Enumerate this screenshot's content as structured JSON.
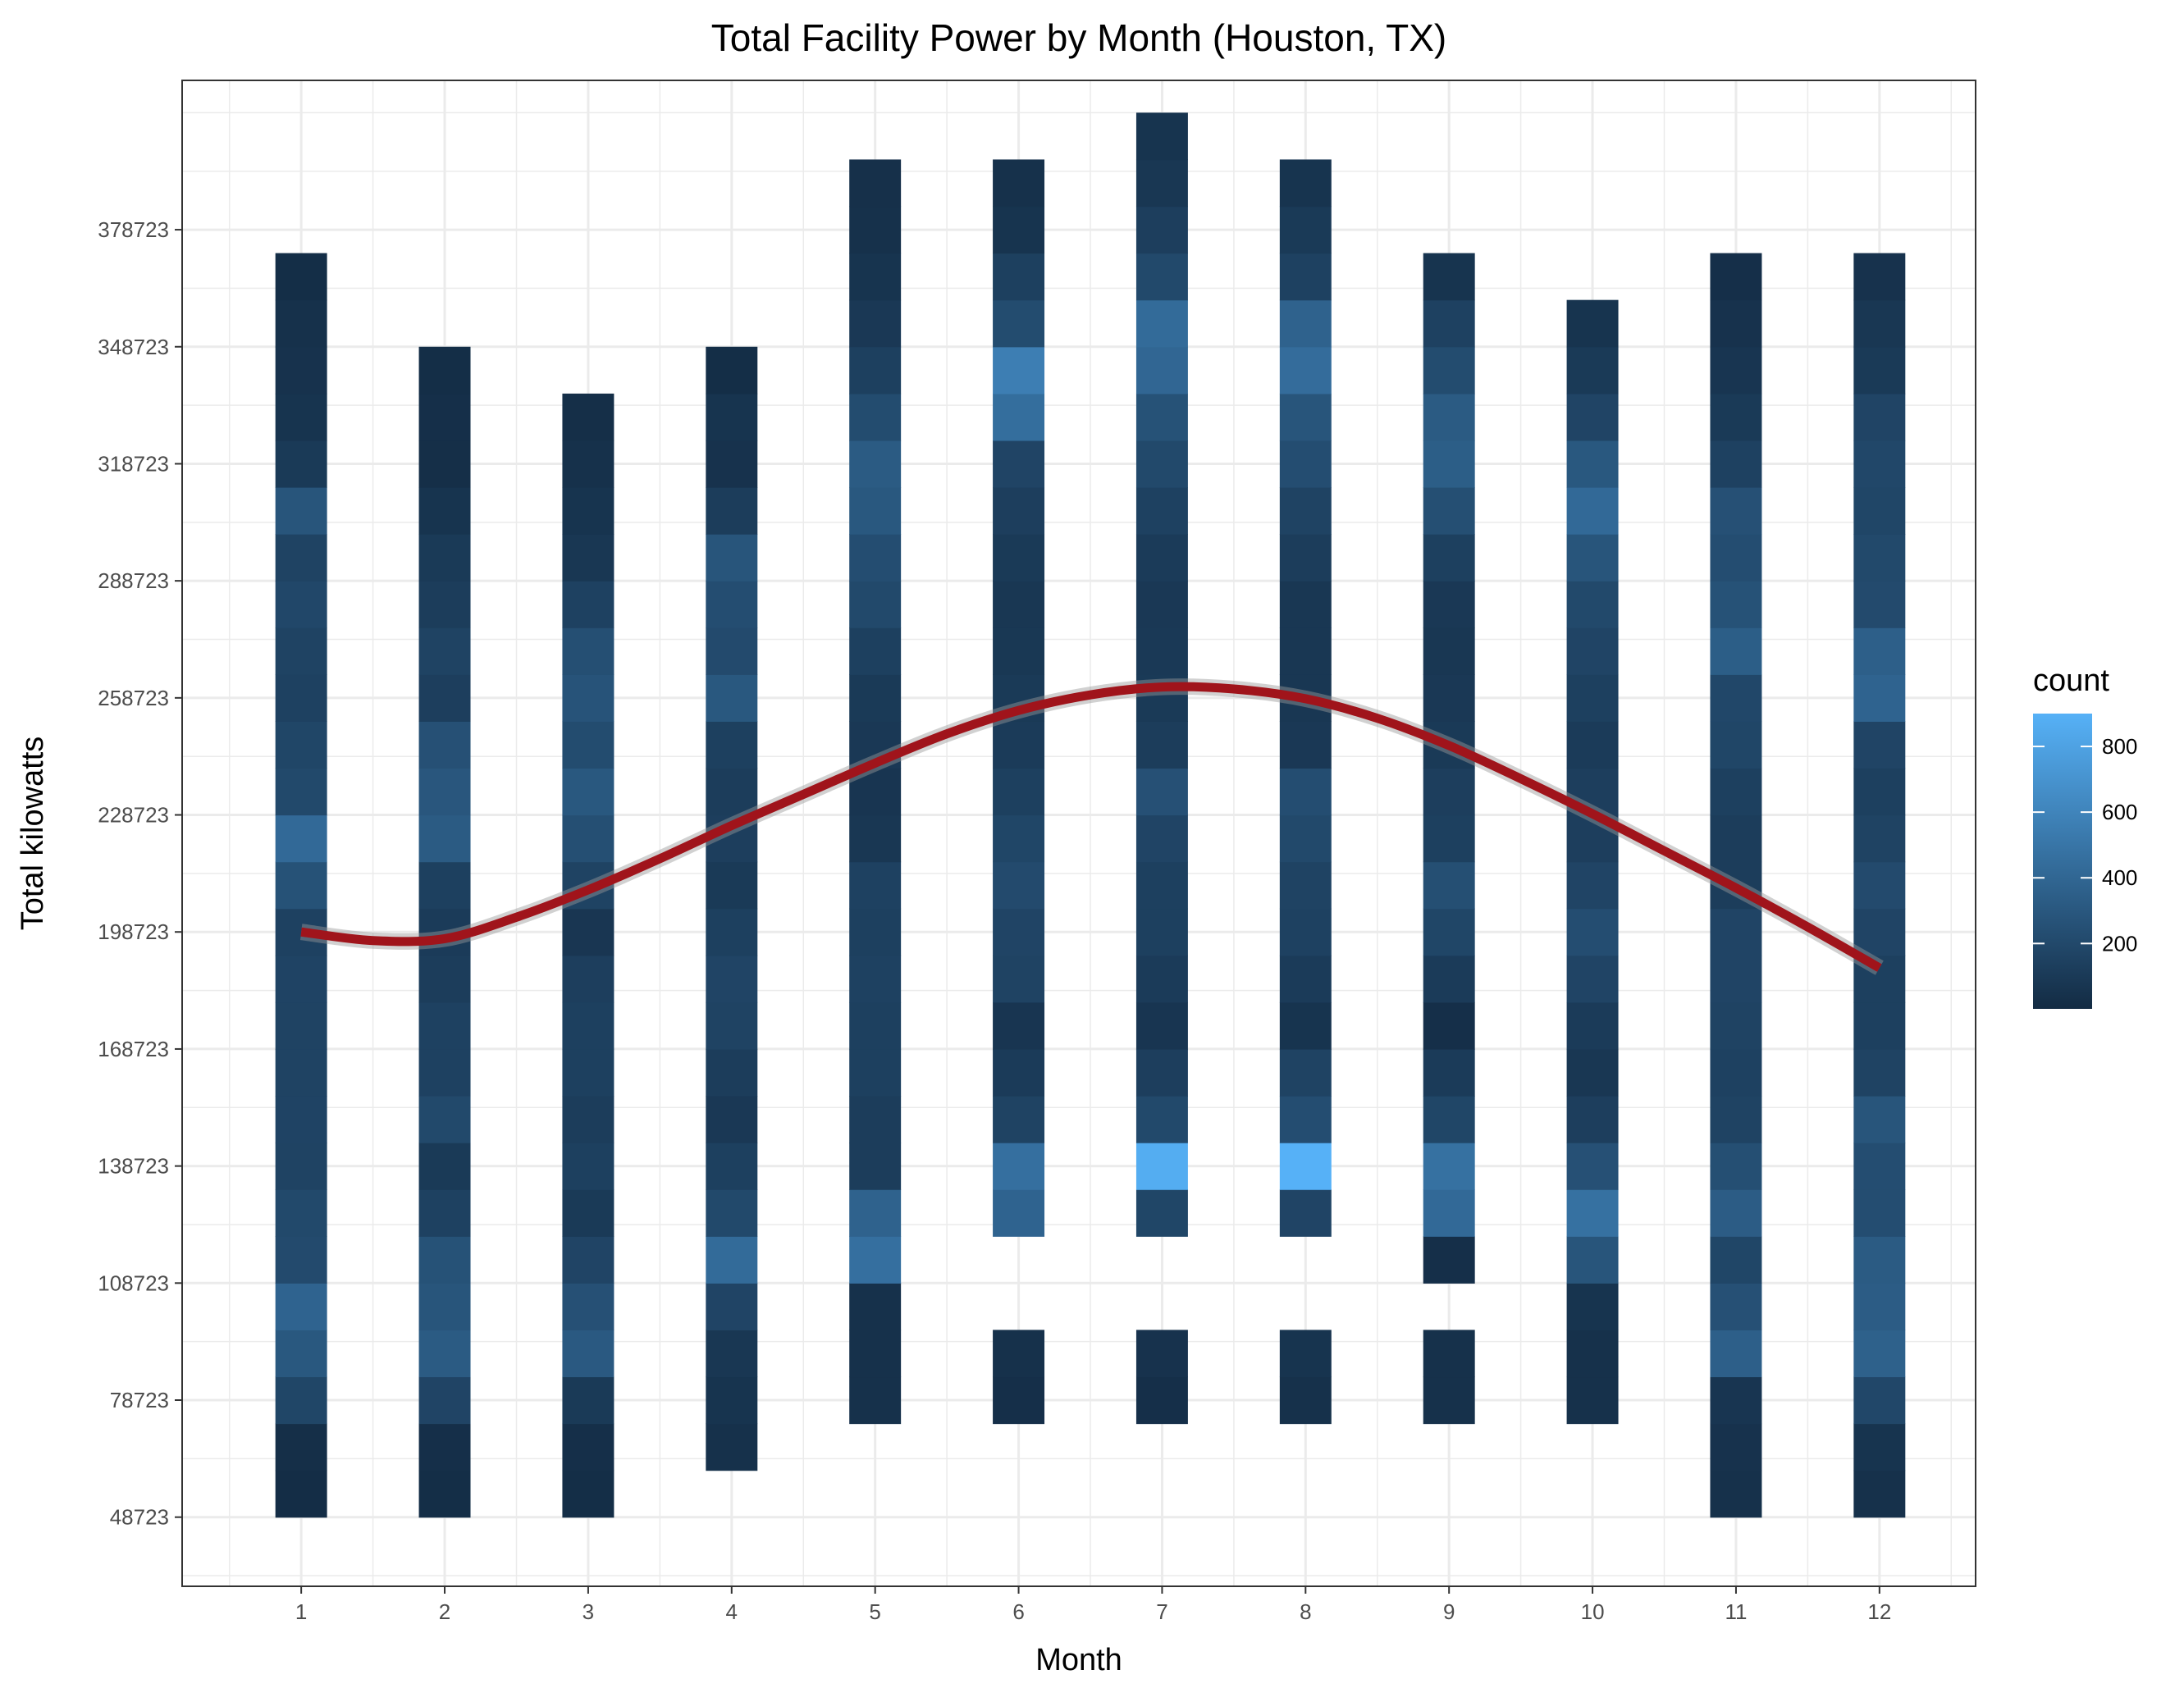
{
  "chart_data": {
    "type": "heatmap",
    "title": "Total Facility Power by Month (Houston, TX)",
    "xlabel": "Month",
    "ylabel": "Total kilowatts",
    "x_ticks": [
      1,
      2,
      3,
      4,
      5,
      6,
      7,
      8,
      9,
      10,
      11,
      12
    ],
    "y_ticks": [
      48723,
      78723,
      108723,
      138723,
      168723,
      198723,
      228723,
      258723,
      288723,
      318723,
      348723,
      378723
    ],
    "xlim": [
      0.17,
      12.67
    ],
    "ylim": [
      31000,
      417000
    ],
    "bin_height_kw": 12000,
    "tile_width_month": 0.36,
    "grid": true,
    "legend": {
      "title": "count",
      "position": "right",
      "ticks": [
        200,
        400,
        600,
        800
      ],
      "min": 1,
      "max": 900,
      "colors": [
        "#132B43",
        "#56B1F7"
      ]
    },
    "columns": [
      {
        "month": 1,
        "y_start": 48723,
        "counts": [
          15,
          25,
          180,
          300,
          380,
          210,
          200,
          160,
          165,
          160,
          160,
          165,
          150,
          260,
          420,
          200,
          180,
          150,
          160,
          190,
          160,
          280,
          100,
          60,
          50,
          40,
          20
        ]
      },
      {
        "month": 2,
        "y_start": 48723,
        "counts": [
          20,
          30,
          170,
          320,
          280,
          260,
          150,
          100,
          200,
          150,
          150,
          120,
          110,
          140,
          320,
          290,
          250,
          130,
          160,
          120,
          100,
          60,
          25,
          30,
          20
        ]
      },
      {
        "month": 3,
        "y_start": 48723,
        "counts": [
          20,
          30,
          100,
          310,
          250,
          170,
          100,
          140,
          120,
          140,
          140,
          130,
          75,
          160,
          240,
          300,
          220,
          270,
          240,
          150,
          80,
          60,
          40,
          25
        ]
      },
      {
        "month": 4,
        "y_start": 60723,
        "counts": [
          40,
          60,
          80,
          170,
          430,
          200,
          140,
          90,
          120,
          160,
          170,
          140,
          100,
          130,
          120,
          140,
          300,
          210,
          230,
          280,
          120,
          50,
          60,
          20
        ]
      },
      {
        "month": 5,
        "y_start": 72723,
        "counts": [
          40,
          40,
          40,
          460,
          370,
          120,
          120,
          140,
          140,
          150,
          140,
          150,
          80,
          70,
          90,
          100,
          140,
          200,
          230,
          300,
          320,
          220,
          140,
          90,
          60,
          40,
          35
        ]
      },
      {
        "month": 6,
        "y_start": 72723,
        "counts": [
          30,
          40,
          0,
          0,
          380,
          460,
          160,
          110,
          70,
          160,
          170,
          210,
          180,
          140,
          110,
          100,
          85,
          80,
          100,
          130,
          170,
          450,
          560,
          220,
          140,
          60,
          40
        ]
      },
      {
        "month": 7,
        "y_start": 72723,
        "counts": [
          30,
          50,
          0,
          0,
          180,
          870,
          200,
          130,
          70,
          110,
          140,
          140,
          170,
          250,
          120,
          100,
          95,
          90,
          110,
          150,
          200,
          260,
          400,
          430,
          200,
          130,
          80,
          60
        ]
      },
      {
        "month": 8,
        "y_start": 72723,
        "counts": [
          40,
          60,
          0,
          0,
          170,
          900,
          230,
          160,
          60,
          110,
          150,
          160,
          200,
          230,
          90,
          80,
          80,
          80,
          120,
          160,
          230,
          280,
          440,
          370,
          150,
          100,
          60
        ]
      },
      {
        "month": 9,
        "y_start": 72723,
        "counts": [
          40,
          40,
          0,
          30,
          420,
          470,
          180,
          110,
          30,
          110,
          180,
          240,
          140,
          130,
          100,
          90,
          80,
          90,
          140,
          240,
          340,
          320,
          220,
          150,
          60
        ]
      },
      {
        "month": 10,
        "y_start": 72723,
        "counts": [
          40,
          40,
          60,
          280,
          470,
          250,
          130,
          80,
          110,
          170,
          230,
          170,
          130,
          130,
          110,
          140,
          170,
          200,
          280,
          420,
          300,
          170,
          100,
          60
        ]
      },
      {
        "month": 11,
        "y_start": 48723,
        "counts": [
          40,
          50,
          70,
          350,
          250,
          180,
          330,
          240,
          160,
          150,
          160,
          170,
          170,
          120,
          120,
          140,
          180,
          190,
          340,
          260,
          230,
          250,
          150,
          100,
          70,
          50,
          30
        ]
      },
      {
        "month": 12,
        "y_start": 48723,
        "counts": [
          40,
          60,
          190,
          360,
          330,
          320,
          230,
          230,
          280,
          160,
          140,
          140,
          170,
          210,
          160,
          140,
          170,
          380,
          350,
          210,
          200,
          180,
          190,
          170,
          100,
          80,
          50
        ]
      }
    ],
    "smooth_line": {
      "color": "#A0141B",
      "points": [
        {
          "x": 1,
          "y": 198723
        },
        {
          "x": 1.5,
          "y": 196500
        },
        {
          "x": 2,
          "y": 197000
        },
        {
          "x": 2.5,
          "y": 202500
        },
        {
          "x": 3,
          "y": 209500
        },
        {
          "x": 3.5,
          "y": 217500
        },
        {
          "x": 4,
          "y": 226000
        },
        {
          "x": 4.5,
          "y": 234000
        },
        {
          "x": 5,
          "y": 242000
        },
        {
          "x": 5.5,
          "y": 249500
        },
        {
          "x": 6,
          "y": 255500
        },
        {
          "x": 6.5,
          "y": 259500
        },
        {
          "x": 7,
          "y": 261500
        },
        {
          "x": 7.5,
          "y": 261000
        },
        {
          "x": 8,
          "y": 258500
        },
        {
          "x": 8.5,
          "y": 253500
        },
        {
          "x": 9,
          "y": 246500
        },
        {
          "x": 9.5,
          "y": 238000
        },
        {
          "x": 10,
          "y": 229000
        },
        {
          "x": 10.5,
          "y": 219500
        },
        {
          "x": 11,
          "y": 210000
        },
        {
          "x": 11.5,
          "y": 200000
        },
        {
          "x": 12,
          "y": 189500
        }
      ]
    }
  }
}
